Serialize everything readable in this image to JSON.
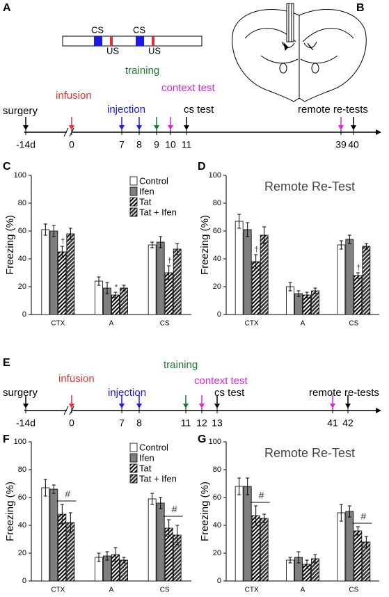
{
  "panel_labels": [
    "A",
    "B",
    "C",
    "D",
    "E",
    "F",
    "G"
  ],
  "protocol": {
    "labels": [
      "CS",
      "US",
      "CS",
      "US"
    ]
  },
  "timeline_a": {
    "ticks": [
      {
        "label": "-14d",
        "color": "#000000"
      },
      {
        "label": "0",
        "color": "#e03030"
      },
      {
        "label": "7",
        "color": "#1a1ae0"
      },
      {
        "label": "8",
        "color": "#1a1ae0"
      },
      {
        "label": "9",
        "color": "#1a7a30"
      },
      {
        "label": "10",
        "color": "#e020e0"
      },
      {
        "label": "11",
        "color": "#000000"
      },
      {
        "label": "39",
        "color": "#e020e0"
      },
      {
        "label": "40",
        "color": "#000000"
      }
    ],
    "events": [
      {
        "text": "surgery",
        "color": "#000000"
      },
      {
        "text": "infusion",
        "color": "#e03030"
      },
      {
        "text": "injection",
        "color": "#1a1ae0"
      },
      {
        "text": "training",
        "color": "#1a7a30"
      },
      {
        "text": "context test",
        "color": "#e020e0"
      },
      {
        "text": "cs test",
        "color": "#000000"
      },
      {
        "text": "remote re-tests",
        "color": "#000000"
      }
    ]
  },
  "timeline_e": {
    "ticks": [
      {
        "label": "-14d",
        "color": "#000000"
      },
      {
        "label": "0",
        "color": "#e03030"
      },
      {
        "label": "7",
        "color": "#1a1ae0"
      },
      {
        "label": "8",
        "color": "#1a1ae0"
      },
      {
        "label": "11",
        "color": "#1a7a30"
      },
      {
        "label": "12",
        "color": "#e020e0"
      },
      {
        "label": "13",
        "color": "#000000"
      },
      {
        "label": "41",
        "color": "#e020e0"
      },
      {
        "label": "42",
        "color": "#000000"
      }
    ],
    "events": [
      {
        "text": "surgery",
        "color": "#000000"
      },
      {
        "text": "infusion",
        "color": "#e03030"
      },
      {
        "text": "injection",
        "color": "#1a1ae0"
      },
      {
        "text": "training",
        "color": "#1a7a30"
      },
      {
        "text": "context test",
        "color": "#e020e0"
      },
      {
        "text": "cs test",
        "color": "#000000"
      },
      {
        "text": "remote re-tests",
        "color": "#000000"
      }
    ]
  },
  "chart_data": [
    {
      "type": "bar",
      "y_label": "Freezing (%)",
      "categories": [
        "CTX",
        "A",
        "CS"
      ],
      "ylim": [
        0,
        100
      ],
      "yticks": [
        0,
        20,
        40,
        60,
        80,
        100
      ],
      "legend": "top-right",
      "bracket": false,
      "series": [
        {
          "name": "Control",
          "color": "#ffffff",
          "hatch": false,
          "values": [
            61,
            24,
            50
          ],
          "errors": [
            4,
            3,
            2
          ],
          "annotations": [
            null,
            null,
            null
          ]
        },
        {
          "name": "Ifen",
          "color": "#808080",
          "hatch": false,
          "values": [
            60,
            19,
            52
          ],
          "errors": [
            4,
            4,
            4
          ],
          "annotations": [
            null,
            null,
            null
          ]
        },
        {
          "name": "Tat",
          "color": "#ffffff",
          "hatch": true,
          "values": [
            45,
            14,
            30
          ],
          "errors": [
            4,
            2,
            5
          ],
          "annotations": [
            "†",
            "*",
            "†"
          ]
        },
        {
          "name": "Tat + Ifen",
          "color": "#555555",
          "hatch": true,
          "values": [
            58,
            19,
            47
          ],
          "errors": [
            4,
            2,
            4
          ],
          "annotations": [
            null,
            null,
            null
          ]
        }
      ]
    },
    {
      "type": "bar",
      "title": "Remote Re-Test",
      "y_label": "Freezing (%)",
      "categories": [
        "CTX",
        "A",
        "CS"
      ],
      "ylim": [
        0,
        100
      ],
      "yticks": [
        0,
        20,
        40,
        60,
        80,
        100
      ],
      "bracket": false,
      "series": [
        {
          "color": "#ffffff",
          "hatch": false,
          "values": [
            67,
            20,
            50
          ],
          "errors": [
            5,
            3,
            3
          ],
          "annotations": [
            null,
            null,
            null
          ]
        },
        {
          "color": "#808080",
          "hatch": false,
          "values": [
            61,
            15,
            54
          ],
          "errors": [
            5,
            2,
            3
          ],
          "annotations": [
            null,
            null,
            null
          ]
        },
        {
          "color": "#ffffff",
          "hatch": true,
          "values": [
            38,
            14,
            28
          ],
          "errors": [
            5,
            2,
            2
          ],
          "annotations": [
            "†",
            null,
            "†"
          ]
        },
        {
          "color": "#555555",
          "hatch": true,
          "values": [
            57,
            17,
            49
          ],
          "errors": [
            6,
            2,
            2
          ],
          "annotations": [
            null,
            null,
            null
          ]
        }
      ]
    },
    {
      "type": "bar",
      "y_label": "Freezing (%)",
      "categories": [
        "CTX",
        "A",
        "CS"
      ],
      "ylim": [
        0,
        100
      ],
      "yticks": [
        0,
        20,
        40,
        60,
        80,
        100
      ],
      "legend": "top-right",
      "bracket": true,
      "series": [
        {
          "name": "Control",
          "color": "#ffffff",
          "hatch": false,
          "values": [
            67,
            17,
            59
          ],
          "errors": [
            6,
            3,
            4
          ],
          "annotations": [
            null,
            null,
            null
          ]
        },
        {
          "name": "Ifen",
          "color": "#808080",
          "hatch": false,
          "values": [
            66,
            18,
            56
          ],
          "errors": [
            3,
            3,
            4
          ],
          "annotations": [
            null,
            null,
            null
          ]
        },
        {
          "name": "Tat",
          "color": "#ffffff",
          "hatch": true,
          "values": [
            48,
            19,
            38
          ],
          "errors": [
            7,
            5,
            6
          ],
          "annotations": [
            "#",
            null,
            "#"
          ]
        },
        {
          "name": "Tat + Ifen",
          "color": "#555555",
          "hatch": true,
          "values": [
            42,
            15,
            33
          ],
          "errors": [
            7,
            2,
            7
          ],
          "annotations": [
            null,
            null,
            null
          ]
        }
      ]
    },
    {
      "type": "bar",
      "title": "Remote Re-Test",
      "y_label": "Freezing (%)",
      "categories": [
        "CTX",
        "A",
        "CS"
      ],
      "ylim": [
        0,
        100
      ],
      "yticks": [
        0,
        20,
        40,
        60,
        80,
        100
      ],
      "bracket": true,
      "series": [
        {
          "color": "#ffffff",
          "hatch": false,
          "values": [
            68,
            15,
            49
          ],
          "errors": [
            6,
            2,
            6
          ],
          "annotations": [
            null,
            null,
            null
          ]
        },
        {
          "color": "#808080",
          "hatch": false,
          "values": [
            68,
            17,
            50
          ],
          "errors": [
            6,
            4,
            4
          ],
          "annotations": [
            null,
            null,
            null
          ]
        },
        {
          "color": "#ffffff",
          "hatch": true,
          "values": [
            47,
            12,
            36
          ],
          "errors": [
            7,
            3,
            3
          ],
          "annotations": [
            "#",
            null,
            "#"
          ]
        },
        {
          "color": "#555555",
          "hatch": true,
          "values": [
            45,
            16,
            28
          ],
          "errors": [
            3,
            3,
            4
          ],
          "annotations": [
            null,
            null,
            null
          ]
        }
      ]
    }
  ]
}
